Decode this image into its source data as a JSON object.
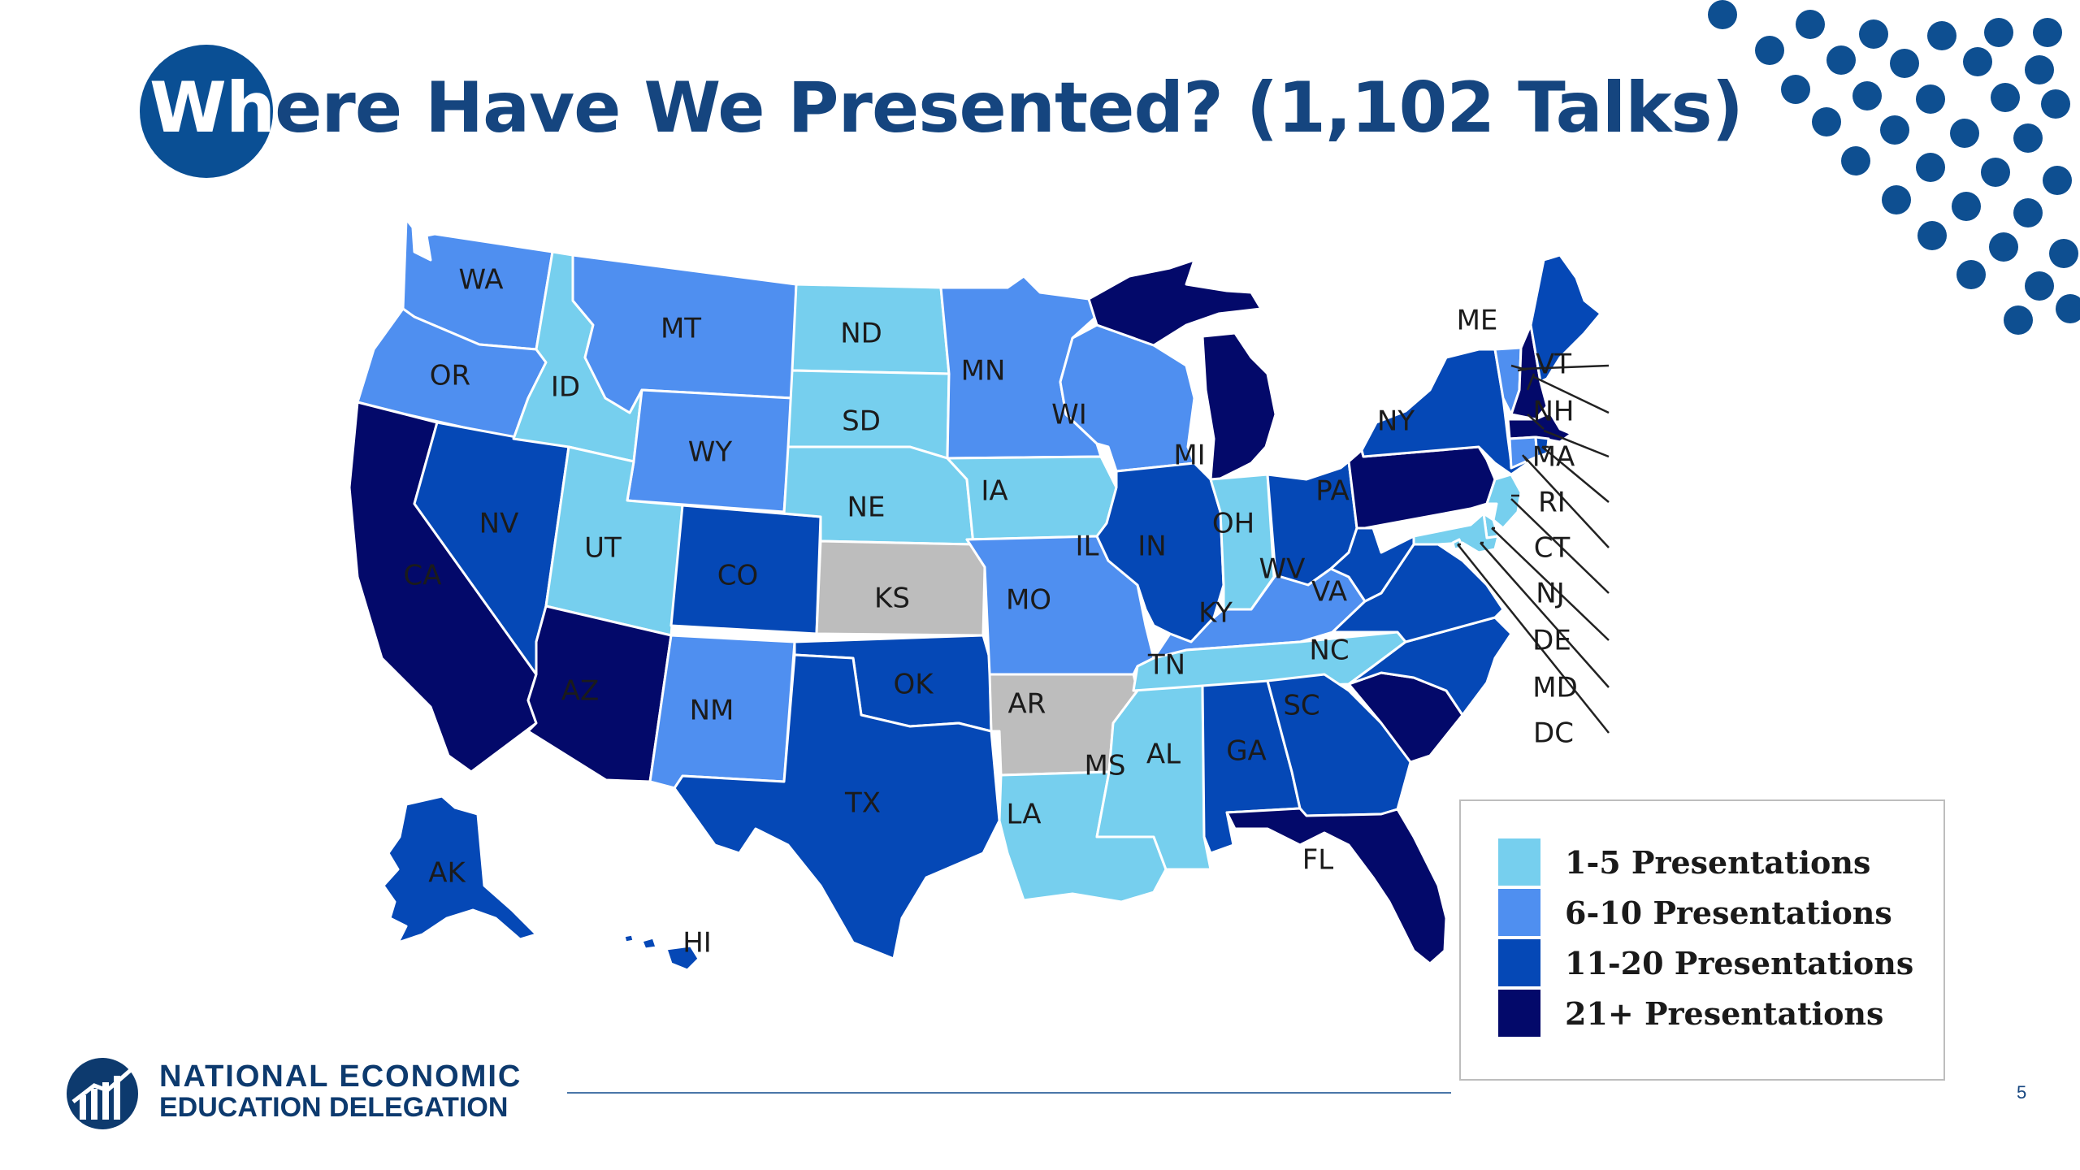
{
  "slide": {
    "title_prefix": "Wh",
    "title_rest": "ere Have We Presented?  (1,102 Talks)",
    "page_number": "5"
  },
  "colors": {
    "tier_1_5": "#76cfee",
    "tier_6_10": "#4f8ff0",
    "tier_11_20": "#0548b6",
    "tier_21_plus": "#03096a",
    "none": "#bdbdbd",
    "title": "#15457f",
    "accent_dots": "#0e4f91"
  },
  "legend": {
    "items": [
      {
        "label": "1-5 Presentations",
        "tier": "tier_1_5"
      },
      {
        "label": "6-10 Presentations",
        "tier": "tier_6_10"
      },
      {
        "label": "11-20 Presentations",
        "tier": "tier_11_20"
      },
      {
        "label": "21+ Presentations",
        "tier": "tier_21_plus"
      }
    ]
  },
  "org": {
    "line1": "NATIONAL ECONOMIC",
    "line2": "EDUCATION DELEGATION"
  },
  "states": [
    {
      "code": "WA",
      "tier": "tier_6_10"
    },
    {
      "code": "OR",
      "tier": "tier_6_10"
    },
    {
      "code": "CA",
      "tier": "tier_21_plus"
    },
    {
      "code": "NV",
      "tier": "tier_11_20"
    },
    {
      "code": "ID",
      "tier": "tier_1_5"
    },
    {
      "code": "MT",
      "tier": "tier_6_10"
    },
    {
      "code": "WY",
      "tier": "tier_6_10"
    },
    {
      "code": "UT",
      "tier": "tier_1_5"
    },
    {
      "code": "AZ",
      "tier": "tier_21_plus"
    },
    {
      "code": "CO",
      "tier": "tier_11_20"
    },
    {
      "code": "NM",
      "tier": "tier_6_10"
    },
    {
      "code": "ND",
      "tier": "tier_1_5"
    },
    {
      "code": "SD",
      "tier": "tier_1_5"
    },
    {
      "code": "NE",
      "tier": "tier_1_5"
    },
    {
      "code": "KS",
      "tier": "none"
    },
    {
      "code": "OK",
      "tier": "tier_11_20"
    },
    {
      "code": "TX",
      "tier": "tier_11_20"
    },
    {
      "code": "MN",
      "tier": "tier_6_10"
    },
    {
      "code": "IA",
      "tier": "tier_1_5"
    },
    {
      "code": "MO",
      "tier": "tier_6_10"
    },
    {
      "code": "AR",
      "tier": "none"
    },
    {
      "code": "LA",
      "tier": "tier_1_5"
    },
    {
      "code": "WI",
      "tier": "tier_6_10"
    },
    {
      "code": "IL",
      "tier": "tier_11_20"
    },
    {
      "code": "MI",
      "tier": "tier_21_plus"
    },
    {
      "code": "IN",
      "tier": "tier_1_5"
    },
    {
      "code": "OH",
      "tier": "tier_11_20"
    },
    {
      "code": "KY",
      "tier": "tier_6_10"
    },
    {
      "code": "TN",
      "tier": "tier_1_5"
    },
    {
      "code": "MS",
      "tier": "tier_1_5"
    },
    {
      "code": "AL",
      "tier": "tier_11_20"
    },
    {
      "code": "GA",
      "tier": "tier_11_20"
    },
    {
      "code": "FL",
      "tier": "tier_21_plus"
    },
    {
      "code": "SC",
      "tier": "tier_21_plus"
    },
    {
      "code": "NC",
      "tier": "tier_11_20"
    },
    {
      "code": "VA",
      "tier": "tier_11_20"
    },
    {
      "code": "WV",
      "tier": "tier_11_20"
    },
    {
      "code": "PA",
      "tier": "tier_21_plus"
    },
    {
      "code": "NY",
      "tier": "tier_11_20"
    },
    {
      "code": "ME",
      "tier": "tier_11_20"
    },
    {
      "code": "VT",
      "tier": "tier_6_10"
    },
    {
      "code": "NH",
      "tier": "tier_21_plus"
    },
    {
      "code": "MA",
      "tier": "tier_21_plus"
    },
    {
      "code": "RI",
      "tier": "tier_11_20"
    },
    {
      "code": "CT",
      "tier": "tier_6_10"
    },
    {
      "code": "NJ",
      "tier": "tier_1_5"
    },
    {
      "code": "DE",
      "tier": "tier_1_5"
    },
    {
      "code": "MD",
      "tier": "tier_1_5"
    },
    {
      "code": "DC",
      "tier": "tier_1_5"
    },
    {
      "code": "AK",
      "tier": "tier_11_20"
    },
    {
      "code": "HI",
      "tier": "tier_11_20"
    }
  ]
}
